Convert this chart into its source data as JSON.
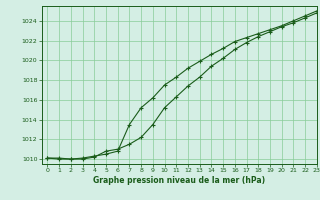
{
  "xlabel": "Graphe pression niveau de la mer (hPa)",
  "xlim": [
    -0.5,
    23
  ],
  "ylim": [
    1009.5,
    1025.5
  ],
  "yticks": [
    1010,
    1012,
    1014,
    1016,
    1018,
    1020,
    1022,
    1024
  ],
  "xticks": [
    0,
    1,
    2,
    3,
    4,
    5,
    6,
    7,
    8,
    9,
    10,
    11,
    12,
    13,
    14,
    15,
    16,
    17,
    18,
    19,
    20,
    21,
    22,
    23
  ],
  "bg_color": "#d4eee4",
  "grid_color": "#88cc99",
  "line_color": "#1a5c1a",
  "series1_x": [
    0,
    1,
    2,
    3,
    4,
    5,
    6,
    7,
    8,
    9,
    10,
    11,
    12,
    13,
    14,
    15,
    16,
    17,
    18,
    19,
    20,
    21,
    22,
    23
  ],
  "series1_y": [
    1010.1,
    1010.1,
    1010.0,
    1010.1,
    1010.3,
    1010.5,
    1010.8,
    1013.5,
    1015.2,
    1016.2,
    1017.5,
    1018.3,
    1019.2,
    1019.9,
    1020.6,
    1021.2,
    1021.9,
    1022.3,
    1022.7,
    1023.1,
    1023.5,
    1024.0,
    1024.5,
    1025.0
  ],
  "series2_x": [
    0,
    1,
    2,
    3,
    4,
    5,
    6,
    7,
    8,
    9,
    10,
    11,
    12,
    13,
    14,
    15,
    16,
    17,
    18,
    19,
    20,
    21,
    22,
    23
  ],
  "series2_y": [
    1010.1,
    1010.0,
    1010.0,
    1010.0,
    1010.2,
    1010.8,
    1011.0,
    1011.5,
    1012.2,
    1013.5,
    1015.2,
    1016.3,
    1017.4,
    1018.3,
    1019.4,
    1020.2,
    1021.1,
    1021.8,
    1022.4,
    1022.9,
    1023.4,
    1023.8,
    1024.3,
    1024.8
  ]
}
